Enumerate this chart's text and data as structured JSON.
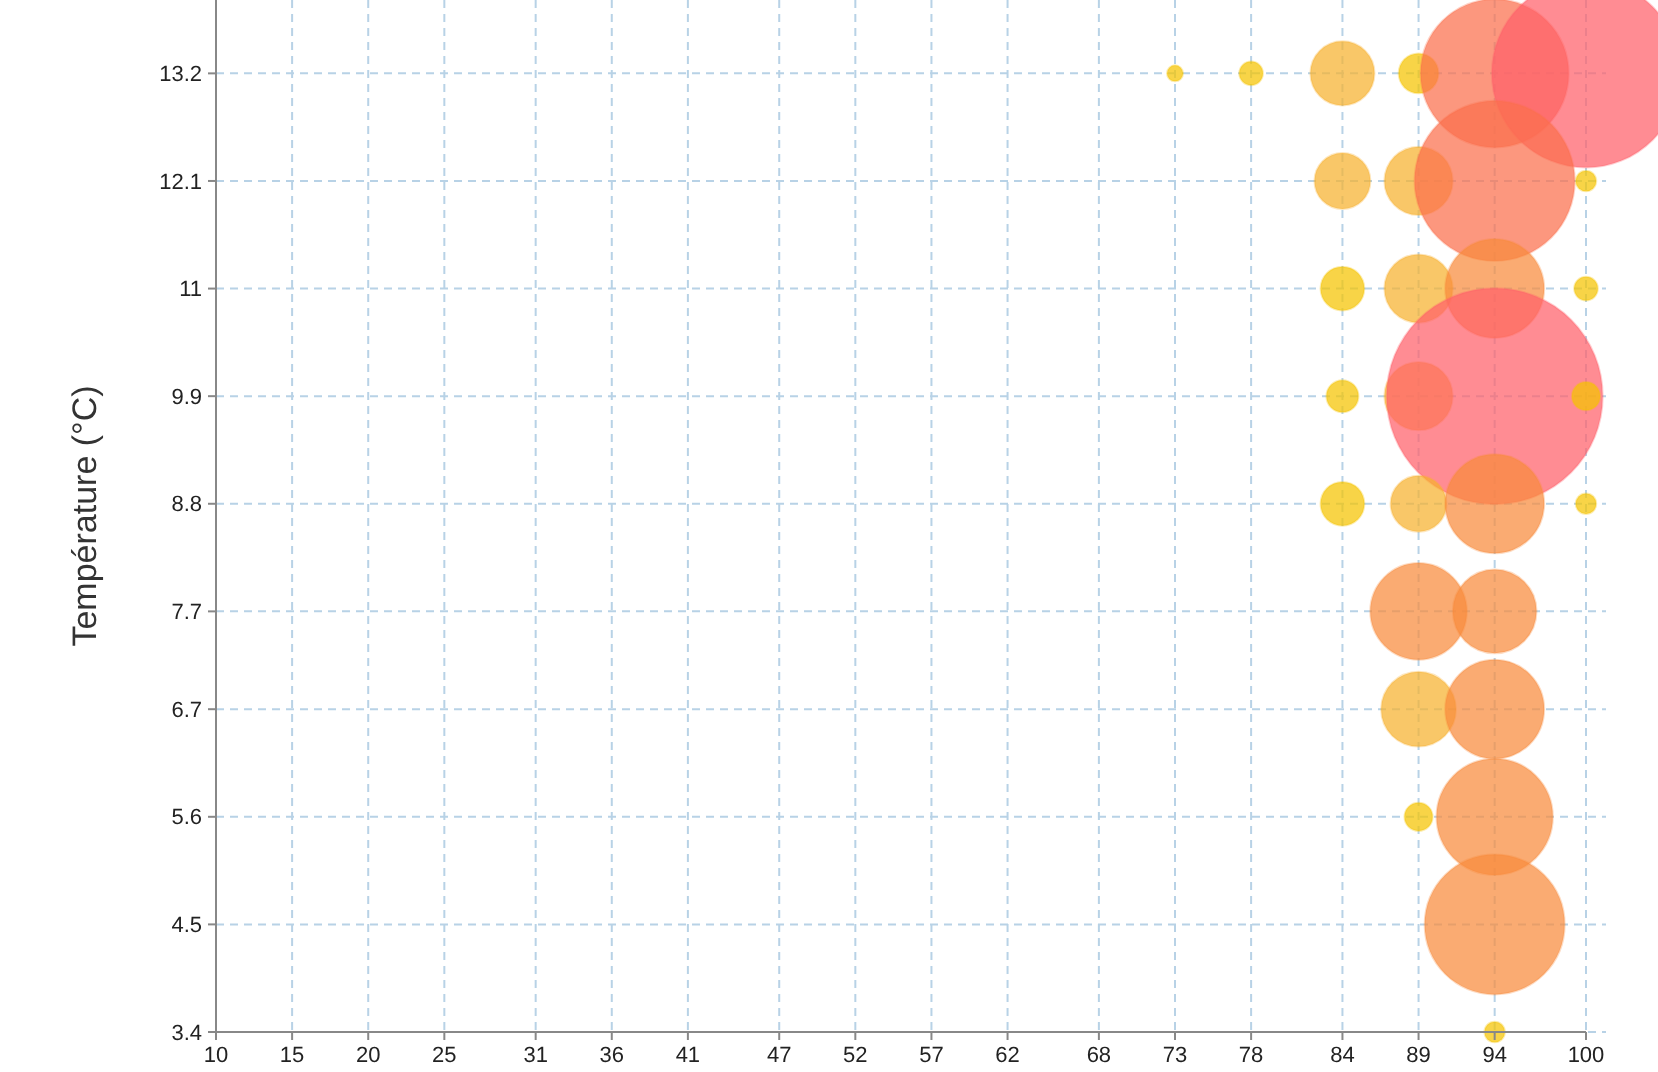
{
  "chart_data": {
    "type": "bubble",
    "ylabel": "Température (°C)",
    "x": [
      73,
      78,
      84,
      89,
      94,
      100,
      84,
      89,
      94,
      100,
      84,
      89,
      94,
      100,
      84,
      89,
      94,
      100,
      84,
      89,
      94,
      100,
      89,
      94,
      89,
      94,
      89,
      94,
      94,
      94
    ],
    "values": [
      13.2,
      13.2,
      13.2,
      13.2,
      13.2,
      13.2,
      12.1,
      12.1,
      12.1,
      12.1,
      11,
      11,
      11,
      11,
      9.9,
      9.9,
      9.9,
      9.9,
      8.8,
      8.8,
      8.8,
      8.8,
      7.7,
      7.7,
      6.7,
      6.7,
      5.6,
      5.6,
      4.5,
      3.4
    ],
    "sizes": [
      0.0055,
      0.012,
      0.088,
      0.034,
      0.47,
      0.76,
      0.067,
      0.1,
      0.55,
      0.009,
      0.041,
      0.1,
      0.21,
      0.012,
      0.022,
      0.1,
      1,
      0.017,
      0.041,
      0.067,
      0.21,
      0.009,
      0.2,
      0.15,
      0.12,
      0.21,
      0.017,
      0.29,
      0.42,
      0.009
    ],
    "colors": [
      "#f5c400",
      "#f5c400",
      "#f7b12e",
      "#f5c400",
      "#fb6f4c",
      "#ff5f6a",
      "#f7b12e",
      "#f7b12e",
      "#fb6f4c",
      "#f5c400",
      "#f5c400",
      "#f7b12e",
      "#f88a3c",
      "#f5c400",
      "#f5c400",
      "#f7b12e",
      "#ff5f6a",
      "#f5c400",
      "#f5c400",
      "#f7b12e",
      "#f88a3c",
      "#f5c400",
      "#f88a3c",
      "#f88a3c",
      "#f7b12e",
      "#f88a3c",
      "#f5c400",
      "#f88a3c",
      "#f88a3c",
      "#f5c400"
    ],
    "xlim": [
      10,
      100
    ],
    "xticks": [
      10,
      15,
      20,
      25,
      31,
      36,
      41,
      47,
      52,
      57,
      62,
      68,
      73,
      78,
      84,
      89,
      94,
      100
    ],
    "ylim": [
      3.4,
      13.95
    ],
    "yticks": [
      3.4,
      4.5,
      5.6,
      6.7,
      7.7,
      8.8,
      9.9,
      11,
      12.1,
      13.2
    ],
    "grid": true
  }
}
